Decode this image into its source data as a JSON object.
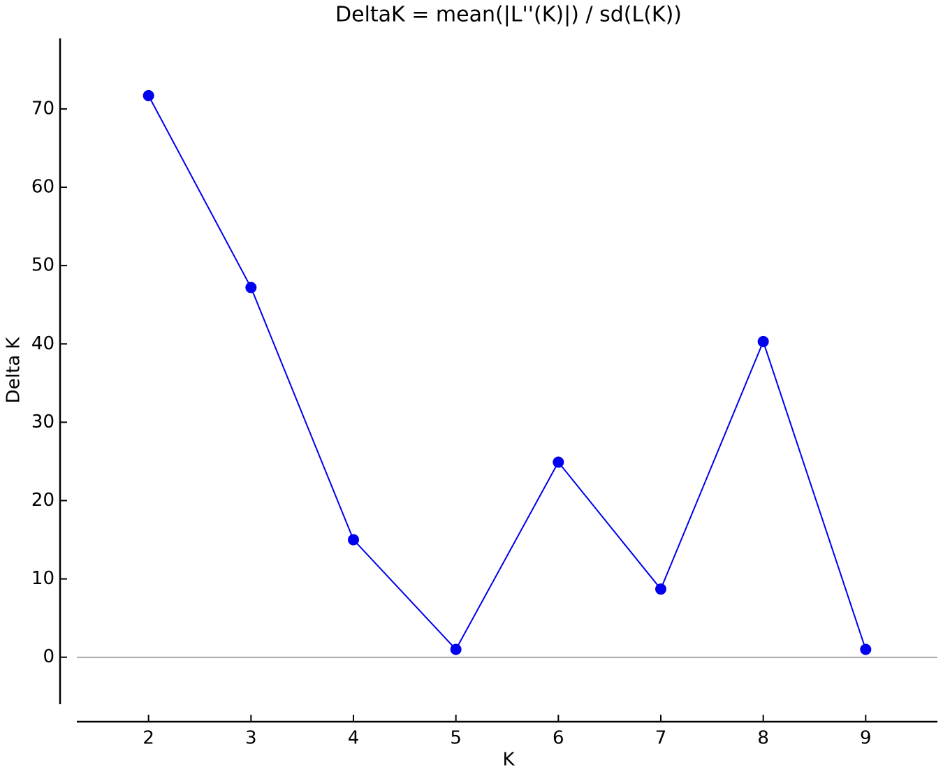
{
  "chart_data": {
    "type": "line",
    "title": "DeltaK = mean(|L''(K)|) / sd(L(K))",
    "x_label": "K",
    "y_label": "Delta K",
    "x": [
      2,
      3,
      4,
      5,
      6,
      7,
      8,
      9
    ],
    "series": [
      {
        "color": "#0000ee",
        "values": [
          71.7,
          47.2,
          15.0,
          1.0,
          24.9,
          8.7,
          40.3,
          1.0
        ]
      }
    ],
    "xlim": [
      1.3,
      9.7
    ],
    "xticks": [
      2,
      3,
      4,
      5,
      6,
      7,
      8,
      9
    ],
    "ylim": [
      -6,
      79
    ],
    "yticks": [
      0,
      10,
      20,
      30,
      40,
      50,
      60,
      70
    ],
    "hlines": [
      0
    ],
    "grid": false,
    "markers": true
  }
}
